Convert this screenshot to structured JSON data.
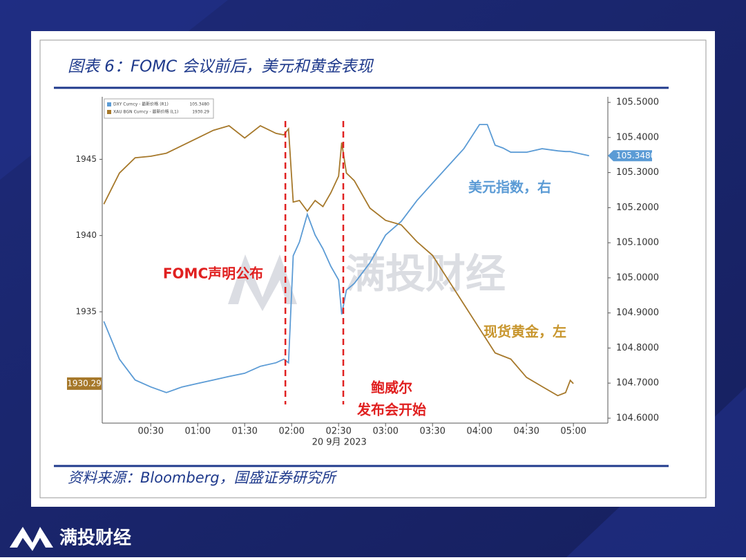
{
  "source": "资料来源：Bloomberg，国盛证券研究所",
  "watermark": "满投财经",
  "brand": "满投财经",
  "chart_data": {
    "type": "line",
    "title": "图表 6：FOMC 会议前后，美元和黄金表现",
    "xlabel": "20 9月 2023",
    "xlim": [
      -1,
      322
    ],
    "xticks": [
      {
        "value": 30,
        "label": "00:30"
      },
      {
        "value": 60,
        "label": "01:00"
      },
      {
        "value": 90,
        "label": "01:30"
      },
      {
        "value": 120,
        "label": "02:00"
      },
      {
        "value": 150,
        "label": "02:30"
      },
      {
        "value": 180,
        "label": "03:00"
      },
      {
        "value": 210,
        "label": "03:30"
      },
      {
        "value": 240,
        "label": "04:00"
      },
      {
        "value": 270,
        "label": "04:30"
      },
      {
        "value": 300,
        "label": "05:00"
      }
    ],
    "ylim": [
      1927.7,
      1949.1
    ],
    "yticks": [
      1935,
      1940,
      1945
    ],
    "y2lim": [
      104.586,
      105.516
    ],
    "y2ticks": [
      {
        "value": 104.6,
        "label": "104.6000"
      },
      {
        "value": 104.7,
        "label": "104.7000"
      },
      {
        "value": 104.8,
        "label": "104.8000"
      },
      {
        "value": 104.9,
        "label": "104.9000"
      },
      {
        "value": 105.0,
        "label": "105.0000"
      },
      {
        "value": 105.1,
        "label": "105.1000"
      },
      {
        "value": 105.2,
        "label": "105.2000"
      },
      {
        "value": 105.3,
        "label": "105.3000"
      },
      {
        "value": 105.4,
        "label": "105.4000"
      },
      {
        "value": 105.5,
        "label": "105.5000"
      }
    ],
    "x": [
      0,
      10,
      20,
      30,
      40,
      50,
      60,
      70,
      80,
      90,
      100,
      110,
      115,
      118,
      121,
      125,
      130,
      135,
      140,
      145,
      150,
      152,
      155,
      160,
      170,
      180,
      190,
      200,
      210,
      220,
      230,
      240,
      245,
      250,
      255,
      260,
      270,
      280,
      290,
      295,
      298,
      300,
      310
    ],
    "series": [
      {
        "name": "DXY Curncy - 最新价格 (R1)",
        "axis": "y2",
        "color": "#5b9bd5",
        "annotation": "美元指数，右",
        "last_label": "105.3480",
        "values": [
          104.876,
          104.768,
          104.709,
          104.689,
          104.673,
          104.689,
          104.699,
          104.709,
          104.719,
          104.728,
          104.748,
          104.758,
          104.768,
          104.758,
          105.063,
          105.102,
          105.181,
          105.122,
          105.083,
          105.033,
          104.994,
          104.896,
          104.965,
          104.984,
          105.043,
          105.122,
          105.161,
          105.22,
          105.27,
          105.319,
          105.368,
          105.437,
          105.437,
          105.378,
          105.37,
          105.358,
          105.358,
          105.368,
          105.362,
          105.36,
          105.36,
          105.358,
          105.348
        ]
      },
      {
        "name": "XAU BGN Curncy - 最新价格 (L1)",
        "axis": "y",
        "color": "#a6782a",
        "annotation": "现货黄金，左",
        "values": [
          1942.06,
          1944.1,
          1945.1,
          1945.2,
          1945.4,
          1945.9,
          1946.4,
          1946.9,
          1947.2,
          1946.4,
          1947.2,
          1946.7,
          1946.6,
          1947.0,
          1942.2,
          1942.3,
          1941.6,
          1942.3,
          1941.9,
          1942.8,
          1943.9,
          1946.1,
          1944.1,
          1943.6,
          1941.8,
          1941.0,
          1940.7,
          1939.6,
          1938.7,
          1937.1,
          1935.5,
          1933.9,
          1933.1,
          1932.3,
          1932.1,
          1931.9,
          1930.7,
          1930.1,
          1929.5,
          1929.7,
          1930.5,
          1930.29,
          null
        ]
      }
    ],
    "vlines": [
      {
        "x": 116,
        "label": [
          "FOMC声明公布"
        ]
      },
      {
        "x": 153,
        "label": [
          "鲍威尔",
          "发布会开始"
        ]
      }
    ]
  }
}
